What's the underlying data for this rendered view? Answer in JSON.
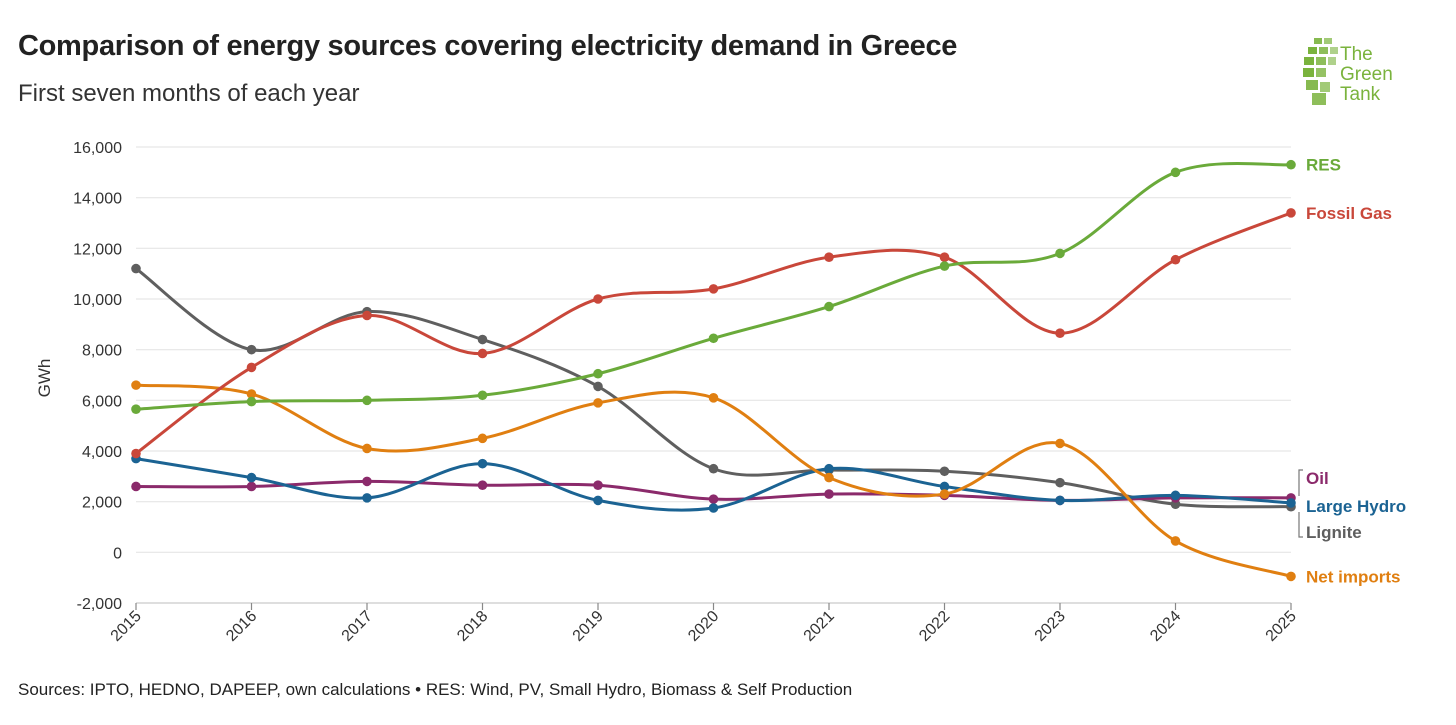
{
  "header": {
    "title": "Comparison of energy sources covering electricity demand in Greece",
    "subtitle": "First seven months of each year"
  },
  "footer": {
    "source": "Sources: IPTO, HEDNO, DAPEEP, own calculations • RES: Wind, PV, Small Hydro, Biomass & Self Production"
  },
  "logo": {
    "line1": "The",
    "line2": "Green",
    "line3": "Tank",
    "color": "#7ab33d"
  },
  "chart_data": {
    "type": "line",
    "title": "Comparison of energy sources covering electricity demand in Greece",
    "subtitle": "First seven months of each year",
    "xlabel": "",
    "ylabel": "GWh",
    "x": [
      "2015",
      "2016",
      "2017",
      "2018",
      "2019",
      "2020",
      "2021",
      "2022",
      "2023",
      "2024",
      "2025"
    ],
    "ylim": [
      -2000,
      16000
    ],
    "yticks": [
      -2000,
      0,
      2000,
      4000,
      6000,
      8000,
      10000,
      12000,
      14000,
      16000
    ],
    "ytick_labels": [
      "-2,000",
      "0",
      "2,000",
      "4,000",
      "6,000",
      "8,000",
      "10,000",
      "12,000",
      "14,000",
      "16,000"
    ],
    "grid": "horizontal",
    "legend": "direct labels at right end of lines",
    "series": [
      {
        "name": "RES",
        "color": "#6aaa3a",
        "values": [
          5650,
          5950,
          6000,
          6200,
          7050,
          8450,
          9700,
          11300,
          11800,
          15000,
          15300
        ]
      },
      {
        "name": "Fossil Gas",
        "color": "#c9473a",
        "values": [
          3900,
          7300,
          9350,
          7850,
          10000,
          10400,
          11650,
          11650,
          8650,
          11550,
          13400
        ]
      },
      {
        "name": "Oil",
        "color": "#8b2a6b",
        "values": [
          2600,
          2600,
          2800,
          2650,
          2650,
          2100,
          2300,
          2250,
          2050,
          2150,
          2150
        ]
      },
      {
        "name": "Large Hydro",
        "color": "#1b6393",
        "values": [
          3700,
          2950,
          2150,
          3500,
          2050,
          1750,
          3300,
          2600,
          2050,
          2250,
          1950
        ]
      },
      {
        "name": "Lignite",
        "color": "#5f5f5f",
        "values": [
          11200,
          8000,
          9500,
          8400,
          6550,
          3300,
          3250,
          3200,
          2750,
          1900,
          1800
        ]
      },
      {
        "name": "Net imports",
        "color": "#e07f11",
        "values": [
          6600,
          6250,
          4100,
          4500,
          5900,
          6100,
          2950,
          2300,
          4300,
          450,
          -950
        ]
      }
    ]
  }
}
